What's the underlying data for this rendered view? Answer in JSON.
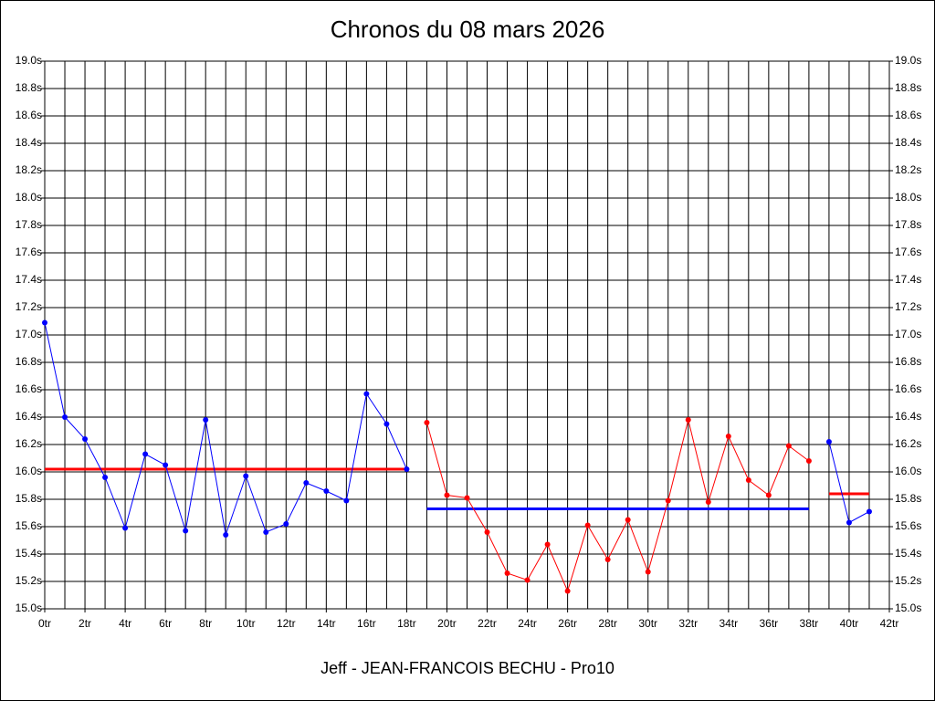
{
  "chart_data": {
    "type": "line",
    "title": "Chronos du 08 mars 2026",
    "xlabel": "Jeff - JEAN-FRANCOIS BECHU - Pro10",
    "xlim": [
      0,
      42
    ],
    "xticks": [
      {
        "value": 0,
        "label": "0tr"
      },
      {
        "value": 2,
        "label": "2tr"
      },
      {
        "value": 4,
        "label": "4tr"
      },
      {
        "value": 6,
        "label": "6tr"
      },
      {
        "value": 8,
        "label": "8tr"
      },
      {
        "value": 10,
        "label": "10tr"
      },
      {
        "value": 12,
        "label": "12tr"
      },
      {
        "value": 14,
        "label": "14tr"
      },
      {
        "value": 16,
        "label": "16tr"
      },
      {
        "value": 18,
        "label": "18tr"
      },
      {
        "value": 20,
        "label": "20tr"
      },
      {
        "value": 22,
        "label": "22tr"
      },
      {
        "value": 24,
        "label": "24tr"
      },
      {
        "value": 26,
        "label": "26tr"
      },
      {
        "value": 28,
        "label": "28tr"
      },
      {
        "value": 30,
        "label": "30tr"
      },
      {
        "value": 32,
        "label": "32tr"
      },
      {
        "value": 34,
        "label": "34tr"
      },
      {
        "value": 36,
        "label": "36tr"
      },
      {
        "value": 38,
        "label": "38tr"
      },
      {
        "value": 40,
        "label": "40tr"
      },
      {
        "value": 42,
        "label": "42tr"
      }
    ],
    "x_minor_ticks": [
      1,
      3,
      5,
      7,
      9,
      11,
      13,
      15,
      17,
      19,
      21,
      23,
      25,
      27,
      29,
      31,
      33,
      35,
      37,
      39,
      41
    ],
    "ylim": [
      15,
      19
    ],
    "yticks": [
      {
        "value": 15,
        "label": "15.0s"
      },
      {
        "value": 15.2,
        "label": "15.2s"
      },
      {
        "value": 15.4,
        "label": "15.4s"
      },
      {
        "value": 15.6,
        "label": "15.6s"
      },
      {
        "value": 15.8,
        "label": "15.8s"
      },
      {
        "value": 16,
        "label": "16.0s"
      },
      {
        "value": 16.2,
        "label": "16.2s"
      },
      {
        "value": 16.4,
        "label": "16.4s"
      },
      {
        "value": 16.6,
        "label": "16.6s"
      },
      {
        "value": 16.8,
        "label": "16.8s"
      },
      {
        "value": 17,
        "label": "17.0s"
      },
      {
        "value": 17.2,
        "label": "17.2s"
      },
      {
        "value": 17.4,
        "label": "17.4s"
      },
      {
        "value": 17.6,
        "label": "17.6s"
      },
      {
        "value": 17.8,
        "label": "17.8s"
      },
      {
        "value": 18,
        "label": "18.0s"
      },
      {
        "value": 18.2,
        "label": "18.2s"
      },
      {
        "value": 18.4,
        "label": "18.4s"
      },
      {
        "value": 18.6,
        "label": "18.6s"
      },
      {
        "value": 18.8,
        "label": "18.8s"
      },
      {
        "value": 19,
        "label": "19.0s"
      }
    ],
    "grid": true,
    "series": [
      {
        "color": "#0000ff",
        "x": [
          0,
          1,
          2,
          3,
          4,
          5,
          6,
          7,
          8,
          9,
          10,
          11,
          12,
          13,
          14,
          15,
          16,
          17,
          18
        ],
        "values": [
          17.09,
          16.4,
          16.24,
          15.96,
          15.59,
          16.13,
          16.05,
          15.57,
          16.38,
          15.54,
          15.97,
          15.56,
          15.62,
          15.92,
          15.86,
          15.79,
          16.57,
          16.35,
          16.02
        ]
      },
      {
        "color": "#ff0000",
        "x": [
          19,
          20,
          21,
          22,
          23,
          24,
          25,
          26,
          27,
          28,
          29,
          30,
          31,
          32,
          33,
          34,
          35,
          36,
          37,
          38
        ],
        "values": [
          16.36,
          15.83,
          15.81,
          15.56,
          15.26,
          15.21,
          15.47,
          15.13,
          15.61,
          15.36,
          15.65,
          15.27,
          15.79,
          16.38,
          15.78,
          16.26,
          15.94,
          15.83,
          16.19,
          16.08
        ]
      },
      {
        "color": "#0000ff",
        "x": [
          39,
          40,
          41
        ],
        "values": [
          16.22,
          15.63,
          15.71
        ]
      }
    ],
    "mean_lines": [
      {
        "color": "#ff0000",
        "x": [
          0,
          18
        ],
        "value": 16.02
      },
      {
        "color": "#0000ff",
        "x": [
          19,
          38
        ],
        "value": 15.73
      },
      {
        "color": "#ff0000",
        "x": [
          39,
          41
        ],
        "value": 15.84
      }
    ]
  }
}
